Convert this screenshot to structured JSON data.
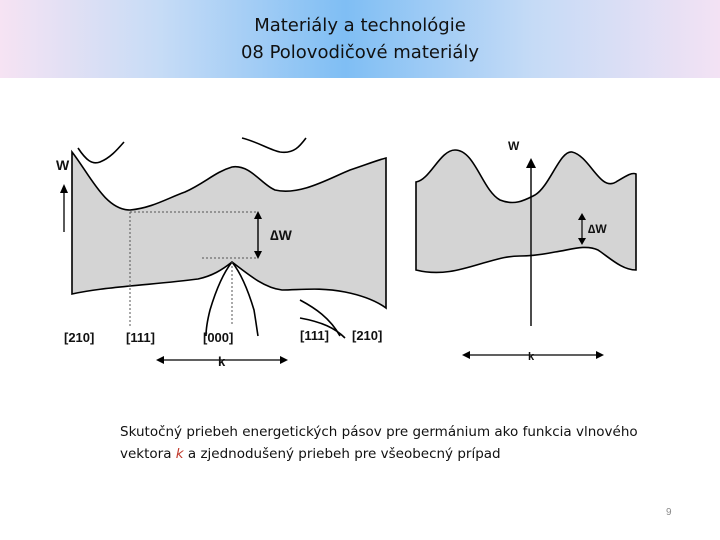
{
  "slide": {
    "title_line1": "Materiály a technológie",
    "title_line2": "08 Polovodičové materiály",
    "page_number": "9"
  },
  "left_figure": {
    "y_axis_label": "W",
    "gap_label": "∆W",
    "k_label": "k",
    "directions": [
      "[210]",
      "[111]",
      "[000]",
      "[111]",
      "[210]"
    ]
  },
  "right_figure": {
    "y_axis_label": "W",
    "gap_label": "∆W",
    "k_label": "k"
  },
  "caption": {
    "part1": "Skutočný priebeh energetických pásov pre germánium ako funkcia vlnového vektora ",
    "k": "k",
    "part2": " a zjednodušený priebeh pre všeobecný prípad"
  },
  "colors": {
    "band_fill": "#d4d4d4",
    "curve": "#000000",
    "title_band_center": "#7fbef4"
  }
}
